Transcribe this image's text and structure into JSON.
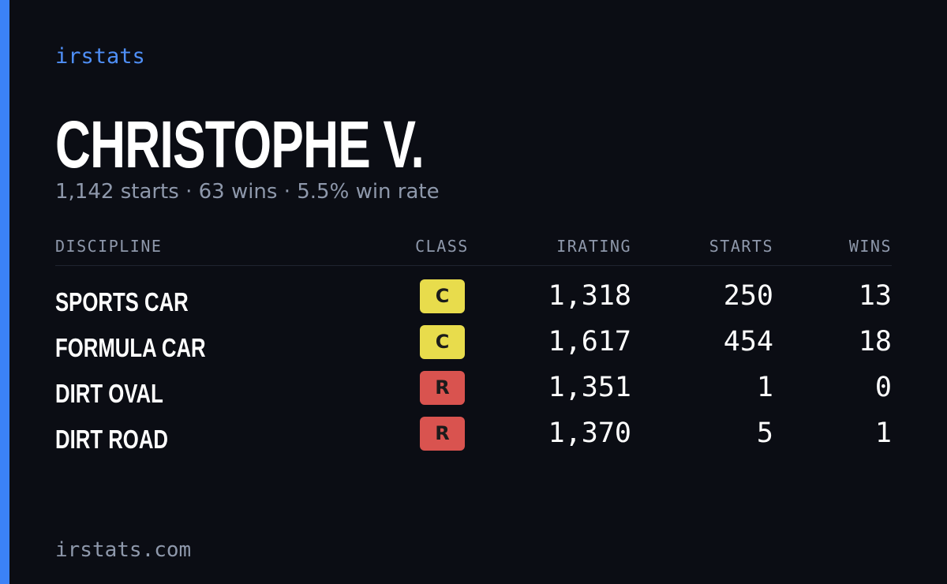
{
  "brand": "irstats",
  "driver": {
    "name": "CHRISTOPHE V.",
    "summary": "1,142 starts · 63 wins · 5.5% win rate"
  },
  "table": {
    "headers": [
      "DISCIPLINE",
      "CLASS",
      "IRATING",
      "STARTS",
      "WINS"
    ],
    "rows": [
      [
        "SPORTS CAR",
        "C",
        "1,318",
        "250",
        "13"
      ],
      [
        "FORMULA CAR",
        "C",
        "1,617",
        "454",
        "18"
      ],
      [
        "DIRT OVAL",
        "R",
        "1,351",
        "1",
        "0"
      ],
      [
        "DIRT ROAD",
        "R",
        "1,370",
        "5",
        "1"
      ]
    ],
    "class_colors": {
      "C": "#e8dc4c",
      "R": "#d9534f"
    }
  },
  "footer": "irstats.com"
}
